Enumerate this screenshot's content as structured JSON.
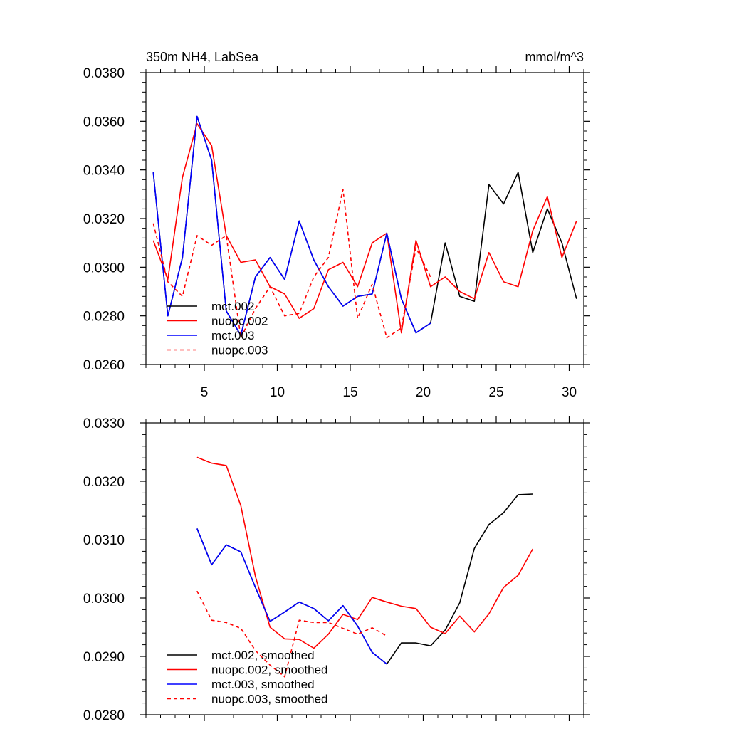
{
  "chart_data": [
    {
      "type": "line",
      "title": "350m NH4, LabSea",
      "units": "mmol/m^3",
      "xlabel": "",
      "ylabel": "",
      "xlim": [
        1,
        31
      ],
      "ylim": [
        0.026,
        0.038
      ],
      "xticks": [
        5,
        10,
        15,
        20,
        25,
        30
      ],
      "yticks": [
        "0.0260",
        "0.0280",
        "0.0300",
        "0.0320",
        "0.0340",
        "0.0360",
        "0.0380"
      ],
      "legend_position": "bottom-left",
      "series": [
        {
          "name": "mct.002",
          "color": "#000000",
          "dash": "solid",
          "x": [
            1.5,
            2.5,
            3.5,
            4.5,
            5.5,
            6.5,
            7.5,
            8.5,
            9.5,
            10.5,
            11.5,
            12.5,
            13.5,
            14.5,
            15.5,
            16.5,
            17.5,
            18.5,
            19.5,
            20.5,
            21.5,
            22.5,
            23.5,
            24.5,
            25.5,
            26.5,
            27.5,
            28.5,
            29.5,
            30.5
          ],
          "values": [
            0.0339,
            0.028,
            0.0304,
            0.0362,
            0.0344,
            0.0282,
            0.0272,
            0.0296,
            0.0304,
            0.0295,
            0.0319,
            0.0303,
            0.0292,
            0.0284,
            0.0288,
            0.0289,
            0.0314,
            0.0287,
            0.0273,
            0.0277,
            0.031,
            0.0288,
            0.0286,
            0.0334,
            0.0326,
            0.0339,
            0.0306,
            0.0324,
            0.031,
            0.0287
          ]
        },
        {
          "name": "nuopc.002",
          "color": "#ff0000",
          "dash": "solid",
          "x": [
            1.5,
            2.5,
            3.5,
            4.5,
            5.5,
            6.5,
            7.5,
            8.5,
            9.5,
            10.5,
            11.5,
            12.5,
            13.5,
            14.5,
            15.5,
            16.5,
            17.5,
            18.5,
            19.5,
            20.5,
            21.5,
            22.5,
            23.5,
            24.5,
            25.5,
            26.5,
            27.5,
            28.5,
            29.5,
            30.5
          ],
          "values": [
            0.0311,
            0.0295,
            0.0337,
            0.0359,
            0.035,
            0.0313,
            0.0302,
            0.0303,
            0.0292,
            0.0289,
            0.0279,
            0.0283,
            0.0299,
            0.0302,
            0.0292,
            0.031,
            0.0314,
            0.0273,
            0.0311,
            0.0292,
            0.0296,
            0.029,
            0.0287,
            0.0306,
            0.0294,
            0.0292,
            0.0315,
            0.0329,
            0.0304,
            0.0319
          ]
        },
        {
          "name": "mct.003",
          "color": "#0000ff",
          "dash": "solid",
          "x": [
            1.5,
            2.5,
            3.5,
            4.5,
            5.5,
            6.5,
            7.5,
            8.5,
            9.5,
            10.5,
            11.5,
            12.5,
            13.5,
            14.5,
            15.5,
            16.5,
            17.5,
            18.5,
            19.5,
            20.5
          ],
          "values": [
            0.0339,
            0.028,
            0.0304,
            0.0362,
            0.0344,
            0.0282,
            0.0272,
            0.0296,
            0.0304,
            0.0295,
            0.0319,
            0.0303,
            0.0292,
            0.0284,
            0.0288,
            0.0289,
            0.0314,
            0.0287,
            0.0273,
            0.0277
          ]
        },
        {
          "name": "nuopc.003",
          "color": "#ff0000",
          "dash": "dashed",
          "x": [
            1.5,
            2.5,
            3.5,
            4.5,
            5.5,
            6.5,
            7.5,
            8.5,
            9.5,
            10.5,
            11.5,
            12.5,
            13.5,
            14.5,
            15.5,
            16.5,
            17.5,
            18.5,
            19.5,
            20.5
          ],
          "values": [
            0.0318,
            0.0294,
            0.0288,
            0.0313,
            0.0309,
            0.0313,
            0.0271,
            0.0283,
            0.0292,
            0.028,
            0.0281,
            0.0296,
            0.0304,
            0.0332,
            0.0279,
            0.0293,
            0.0271,
            0.0275,
            0.0308,
            0.0296
          ]
        }
      ]
    },
    {
      "type": "line",
      "title": "",
      "xlabel": "",
      "ylabel": "",
      "xlim": [
        1,
        31
      ],
      "ylim": [
        0.028,
        0.033
      ],
      "xticks": [
        5,
        10,
        15,
        20,
        25,
        30
      ],
      "yticks": [
        "0.0280",
        "0.0290",
        "0.0300",
        "0.0310",
        "0.0320",
        "0.0330"
      ],
      "legend_position": "bottom-left",
      "series": [
        {
          "name": "mct.002, smoothed",
          "color": "#000000",
          "dash": "solid",
          "x": [
            4.5,
            5.5,
            6.5,
            7.5,
            8.5,
            9.5,
            10.5,
            11.5,
            12.5,
            13.5,
            14.5,
            15.5,
            16.5,
            17.5,
            18.5,
            19.5,
            20.5,
            21.5,
            22.5,
            23.5,
            24.5,
            25.5,
            26.5,
            27.5
          ],
          "values": [
            0.03119,
            0.03057,
            0.03091,
            0.03079,
            0.03018,
            0.0296,
            0.02976,
            0.02993,
            0.02982,
            0.02961,
            0.02987,
            0.02952,
            0.02907,
            0.02887,
            0.02923,
            0.02923,
            0.02918,
            0.02945,
            0.02992,
            0.03085,
            0.03126,
            0.03146,
            0.03177,
            0.03178
          ]
        },
        {
          "name": "nuopc.002, smoothed",
          "color": "#ff0000",
          "dash": "solid",
          "x": [
            4.5,
            5.5,
            6.5,
            7.5,
            8.5,
            9.5,
            10.5,
            11.5,
            12.5,
            13.5,
            14.5,
            15.5,
            16.5,
            17.5,
            18.5,
            19.5,
            20.5,
            21.5,
            22.5,
            23.5,
            24.5,
            25.5,
            26.5,
            27.5
          ],
          "values": [
            0.03241,
            0.03231,
            0.03227,
            0.03158,
            0.03037,
            0.0295,
            0.0293,
            0.02929,
            0.02914,
            0.02938,
            0.02972,
            0.02963,
            0.03001,
            0.02993,
            0.02986,
            0.02982,
            0.0295,
            0.02939,
            0.02969,
            0.02942,
            0.02973,
            0.03018,
            0.03039,
            0.03084
          ]
        },
        {
          "name": "mct.003, smoothed",
          "color": "#0000ff",
          "dash": "solid",
          "x": [
            4.5,
            5.5,
            6.5,
            7.5,
            8.5,
            9.5,
            10.5,
            11.5,
            12.5,
            13.5,
            14.5,
            15.5,
            16.5,
            17.5
          ],
          "values": [
            0.03119,
            0.03057,
            0.03091,
            0.03079,
            0.03018,
            0.0296,
            0.02976,
            0.02993,
            0.02982,
            0.02961,
            0.02987,
            0.02952,
            0.02907,
            0.02887
          ]
        },
        {
          "name": "nuopc.003, smoothed",
          "color": "#ff0000",
          "dash": "dashed",
          "x": [
            4.5,
            5.5,
            6.5,
            7.5,
            8.5,
            9.5,
            10.5,
            11.5,
            12.5,
            13.5,
            14.5,
            15.5,
            16.5,
            17.5
          ],
          "values": [
            0.03012,
            0.02962,
            0.02958,
            0.02948,
            0.0291,
            0.02885,
            0.02865,
            0.02962,
            0.02958,
            0.02958,
            0.02948,
            0.02938,
            0.02949,
            0.02935
          ]
        }
      ]
    }
  ]
}
